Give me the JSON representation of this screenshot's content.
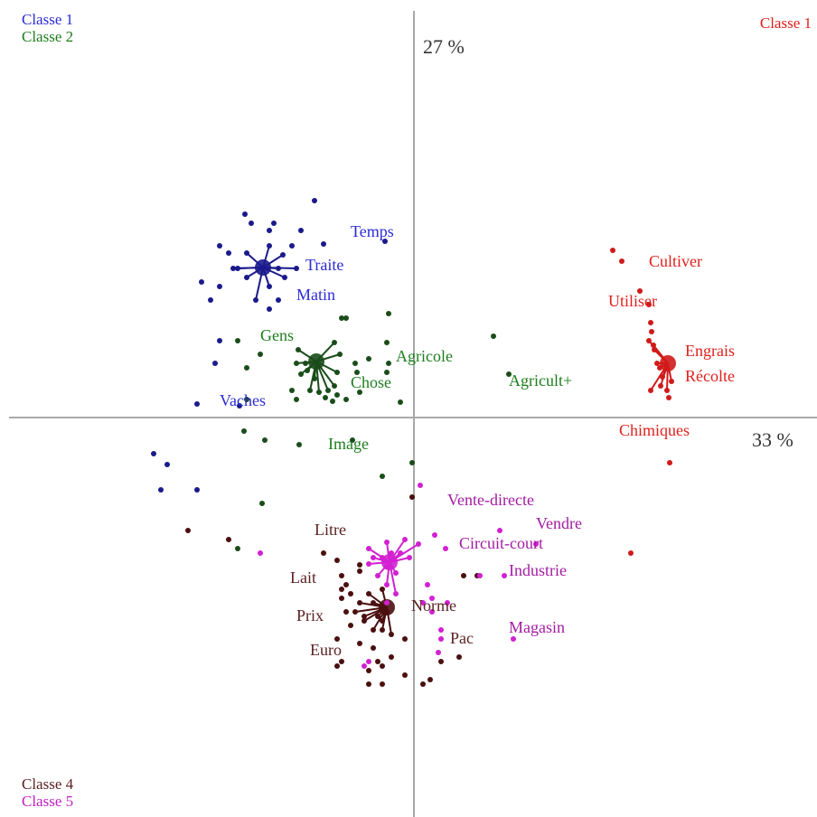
{
  "legend": {
    "top_left": [
      {
        "label": "Classe 1",
        "color": "#2b2bd6"
      },
      {
        "label": "Classe 2",
        "color": "#1e7d1e"
      }
    ],
    "top_right": {
      "label": "Classe 1",
      "color": "#e0201c"
    },
    "bottom_left": [
      {
        "label": "Classe 4",
        "color": "#5a1f1f"
      },
      {
        "label": "Classe 5",
        "color": "#c020c0"
      }
    ]
  },
  "chart_data": {
    "type": "scatter",
    "title": "",
    "xlabel": "33 %",
    "ylabel": "27 %",
    "xlim": [
      -4.48,
      4.45
    ],
    "ylim": [
      -4.4,
      4.6
    ],
    "grid": false,
    "legend_placement": "corners",
    "axis_color": "#a9a9a9",
    "class_colors": {
      "classe1_blue": "#2b2bd6",
      "classe1_red": "#e0201c",
      "classe2": "#1e7d1e",
      "classe4": "#5a1f1f",
      "classe5": "#c020c0"
    },
    "series": [
      {
        "name": "Classe 1",
        "color": "#1a1a8c",
        "points": [
          [
            -1.1,
            2.4
          ],
          [
            -1.87,
            2.25
          ],
          [
            -1.8,
            2.15
          ],
          [
            -1.55,
            2.15
          ],
          [
            -1.25,
            2.07
          ],
          [
            -1.6,
            2.07
          ],
          [
            -2.15,
            1.9
          ],
          [
            -1.6,
            1.9
          ],
          [
            -1.35,
            1.9
          ],
          [
            -1.45,
            1.8
          ],
          [
            -1.0,
            1.92
          ],
          [
            -0.32,
            1.95
          ],
          [
            -2.05,
            1.82
          ],
          [
            -1.85,
            1.82
          ],
          [
            -1.3,
            1.65
          ],
          [
            -1.5,
            1.65
          ],
          [
            -2.0,
            1.65
          ],
          [
            -1.85,
            1.55
          ],
          [
            -1.95,
            1.65
          ],
          [
            -2.35,
            1.5
          ],
          [
            -1.43,
            1.55
          ],
          [
            -2.15,
            1.45
          ],
          [
            -1.6,
            1.45
          ],
          [
            -1.75,
            1.3
          ],
          [
            -1.5,
            1.3
          ],
          [
            -1.6,
            1.2
          ],
          [
            -2.25,
            1.3
          ],
          [
            -2.15,
            0.85
          ],
          [
            -2.2,
            0.6
          ],
          [
            -2.4,
            0.15
          ],
          [
            -1.93,
            0.13
          ],
          [
            -2.88,
            -0.4
          ],
          [
            -2.73,
            -0.52
          ],
          [
            -2.8,
            -0.8
          ],
          [
            -2.4,
            -0.8
          ]
        ],
        "center": [
          -1.67,
          1.66
        ]
      },
      {
        "name": "Classe 1",
        "color": "#d01a1a",
        "points": [
          [
            2.2,
            1.85
          ],
          [
            2.3,
            1.73
          ],
          [
            2.5,
            1.4
          ],
          [
            2.6,
            1.25
          ],
          [
            2.62,
            1.05
          ],
          [
            2.63,
            0.95
          ],
          [
            2.6,
            0.85
          ],
          [
            2.65,
            0.8
          ],
          [
            2.66,
            0.75
          ],
          [
            2.69,
            0.6
          ],
          [
            2.72,
            0.55
          ],
          [
            2.75,
            0.45
          ],
          [
            2.62,
            0.3
          ],
          [
            2.73,
            0.35
          ],
          [
            2.8,
            0.55
          ],
          [
            2.85,
            0.4
          ],
          [
            2.8,
            0.3
          ],
          [
            2.82,
            0.22
          ],
          [
            2.4,
            -1.5
          ],
          [
            2.83,
            -0.5
          ]
        ],
        "center": [
          2.81,
          0.6
        ]
      },
      {
        "name": "Classe 2",
        "color": "#1a4d1a",
        "points": [
          [
            -0.8,
            1.1
          ],
          [
            -0.75,
            1.1
          ],
          [
            -0.28,
            1.15
          ],
          [
            -1.95,
            0.85
          ],
          [
            -0.88,
            0.83
          ],
          [
            -0.3,
            0.83
          ],
          [
            -1.7,
            0.7
          ],
          [
            -1.28,
            0.75
          ],
          [
            -0.82,
            0.7
          ],
          [
            -0.5,
            0.65
          ],
          [
            -1.3,
            0.6
          ],
          [
            -1.2,
            0.6
          ],
          [
            -0.65,
            0.6
          ],
          [
            -0.28,
            0.6
          ],
          [
            0.88,
            0.9
          ],
          [
            -1.85,
            0.55
          ],
          [
            -1.18,
            0.52
          ],
          [
            -0.85,
            0.5
          ],
          [
            -1.25,
            0.48
          ],
          [
            -1.1,
            0.43
          ],
          [
            -0.63,
            0.5
          ],
          [
            -0.3,
            0.5
          ],
          [
            1.05,
            0.48
          ],
          [
            -1.85,
            0.2
          ],
          [
            -1.15,
            0.3
          ],
          [
            -1.05,
            0.28
          ],
          [
            -0.85,
            0.25
          ],
          [
            -1.35,
            0.3
          ],
          [
            -0.95,
            0.3
          ],
          [
            -0.9,
            0.18
          ],
          [
            -0.75,
            0.2
          ],
          [
            -0.6,
            0.28
          ],
          [
            -1.3,
            0.2
          ],
          [
            -0.15,
            0.17
          ],
          [
            -0.98,
            0.22
          ],
          [
            -0.88,
            0.35
          ],
          [
            -1.88,
            -0.15
          ],
          [
            -1.65,
            -0.25
          ],
          [
            -1.27,
            -0.3
          ],
          [
            -0.68,
            -0.25
          ],
          [
            -0.35,
            -0.65
          ],
          [
            -0.02,
            -0.5
          ],
          [
            -1.68,
            -0.95
          ],
          [
            -1.95,
            -1.45
          ]
        ],
        "center": [
          -1.08,
          0.62
        ]
      },
      {
        "name": "Classe 4",
        "color": "#4a0f0f",
        "points": [
          [
            -0.02,
            -0.88
          ],
          [
            -2.5,
            -1.25
          ],
          [
            -2.05,
            -1.35
          ],
          [
            -1.0,
            -1.5
          ],
          [
            -0.85,
            -1.58
          ],
          [
            -0.6,
            -1.63
          ],
          [
            -0.8,
            -1.75
          ],
          [
            -0.6,
            -1.7
          ],
          [
            -0.75,
            -1.85
          ],
          [
            -0.8,
            -1.9
          ],
          [
            -0.7,
            -1.95
          ],
          [
            -0.5,
            -1.95
          ],
          [
            -0.35,
            -1.9
          ],
          [
            -0.8,
            -2.0
          ],
          [
            -0.6,
            -2.05
          ],
          [
            -0.45,
            -2.05
          ],
          [
            -0.75,
            -2.15
          ],
          [
            -0.65,
            -2.15
          ],
          [
            -0.55,
            -2.2
          ],
          [
            -0.4,
            -2.2
          ],
          [
            -0.3,
            -2.15
          ],
          [
            -0.35,
            -2.25
          ],
          [
            -0.55,
            -2.25
          ],
          [
            -0.45,
            -2.35
          ],
          [
            -0.7,
            -2.3
          ],
          [
            -0.85,
            -2.45
          ],
          [
            -0.25,
            -2.4
          ],
          [
            -0.35,
            -2.35
          ],
          [
            -0.1,
            -2.45
          ],
          [
            -0.45,
            -2.55
          ],
          [
            -0.8,
            -2.7
          ],
          [
            -0.6,
            -2.5
          ],
          [
            -0.4,
            -2.7
          ],
          [
            -0.25,
            -2.65
          ],
          [
            -0.85,
            -2.75
          ],
          [
            -0.5,
            -2.8
          ],
          [
            -0.35,
            -2.75
          ],
          [
            -0.1,
            -2.85
          ],
          [
            -0.5,
            -2.95
          ],
          [
            0.18,
            -2.9
          ],
          [
            0.1,
            -2.95
          ],
          [
            0.3,
            -2.7
          ],
          [
            0.5,
            -2.65
          ],
          [
            0.55,
            -1.75
          ],
          [
            0.7,
            -1.75
          ],
          [
            -0.35,
            -2.95
          ]
        ],
        "center": [
          -0.3,
          -2.1
        ]
      },
      {
        "name": "Classe 5",
        "color": "#d220d2",
        "points": [
          [
            0.07,
            -0.75
          ],
          [
            -0.1,
            -1.35
          ],
          [
            0.23,
            -1.3
          ],
          [
            -0.3,
            -1.38
          ],
          [
            0.05,
            -1.4
          ],
          [
            0.35,
            -1.45
          ],
          [
            -0.5,
            -1.45
          ],
          [
            -0.45,
            -1.55
          ],
          [
            -0.35,
            -1.55
          ],
          [
            -0.25,
            -1.5
          ],
          [
            -0.15,
            -1.5
          ],
          [
            -0.05,
            -1.55
          ],
          [
            -0.5,
            -1.62
          ],
          [
            -0.3,
            -1.65
          ],
          [
            -0.4,
            -1.75
          ],
          [
            -0.2,
            -1.72
          ],
          [
            -0.3,
            -1.85
          ],
          [
            -0.2,
            -1.95
          ],
          [
            -0.3,
            -2.05
          ],
          [
            0.15,
            -1.85
          ],
          [
            0.2,
            -2.0
          ],
          [
            0.37,
            -2.05
          ],
          [
            0.1,
            -2.05
          ],
          [
            0.95,
            -1.25
          ],
          [
            1.35,
            -1.4
          ],
          [
            0.73,
            -1.75
          ],
          [
            1.0,
            -1.75
          ],
          [
            -1.7,
            -1.5
          ],
          [
            0.2,
            -2.15
          ],
          [
            0.3,
            -2.35
          ],
          [
            0.3,
            -2.45
          ],
          [
            1.1,
            -2.45
          ],
          [
            0.27,
            -2.6
          ],
          [
            -0.5,
            -2.7
          ],
          [
            -0.55,
            -2.75
          ]
        ],
        "center": [
          -0.27,
          -1.6
        ]
      }
    ],
    "labels": [
      {
        "text": "Temps",
        "x": -0.7,
        "y": 2.0,
        "color": "#2b2bd6"
      },
      {
        "text": "Traite",
        "x": -1.2,
        "y": 1.63,
        "color": "#2b2bd6"
      },
      {
        "text": "Matin",
        "x": -1.3,
        "y": 1.3,
        "color": "#2b2bd6"
      },
      {
        "text": "Vaches",
        "x": -2.15,
        "y": 0.13,
        "color": "#2b2bd6"
      },
      {
        "text": "Cultiver",
        "x": 2.6,
        "y": 1.67,
        "color": "#e0201c"
      },
      {
        "text": "Utiliser",
        "x": 2.15,
        "y": 1.23,
        "color": "#e0201c"
      },
      {
        "text": "Engrais",
        "x": 3.0,
        "y": 0.68,
        "color": "#e0201c"
      },
      {
        "text": "Récolte",
        "x": 3.0,
        "y": 0.4,
        "color": "#e0201c"
      },
      {
        "text": "Chimiques",
        "x": 2.27,
        "y": -0.2,
        "color": "#e0201c"
      },
      {
        "text": "Gens",
        "x": -1.7,
        "y": 0.85,
        "color": "#1e7d1e"
      },
      {
        "text": "Agricole",
        "x": -0.2,
        "y": 0.62,
        "color": "#1e7d1e"
      },
      {
        "text": "Chose",
        "x": -0.7,
        "y": 0.33,
        "color": "#1e7d1e"
      },
      {
        "text": "Agricult+",
        "x": 1.05,
        "y": 0.35,
        "color": "#1e7d1e"
      },
      {
        "text": "Image",
        "x": -0.95,
        "y": -0.35,
        "color": "#1e7d1e"
      },
      {
        "text": "Vente-directe",
        "x": 0.37,
        "y": -0.97,
        "color": "#a21ca2"
      },
      {
        "text": "Vendre",
        "x": 1.35,
        "y": -1.23,
        "color": "#a21ca2"
      },
      {
        "text": "Circuit-court",
        "x": 0.5,
        "y": -1.45,
        "color": "#a21ca2"
      },
      {
        "text": "Industrie",
        "x": 1.05,
        "y": -1.75,
        "color": "#a21ca2"
      },
      {
        "text": "Magasin",
        "x": 1.05,
        "y": -2.38,
        "color": "#a21ca2"
      },
      {
        "text": "Litre",
        "x": -1.1,
        "y": -1.3,
        "color": "#5a1f1f"
      },
      {
        "text": "Lait",
        "x": -1.37,
        "y": -1.83,
        "color": "#5a1f1f"
      },
      {
        "text": "Prix",
        "x": -1.3,
        "y": -2.25,
        "color": "#5a1f1f"
      },
      {
        "text": "Euro",
        "x": -1.15,
        "y": -2.63,
        "color": "#5a1f1f"
      },
      {
        "text": "Norme",
        "x": -0.03,
        "y": -2.14,
        "color": "#5a1f1f"
      },
      {
        "text": "Pac",
        "x": 0.4,
        "y": -2.5,
        "color": "#5a1f1f"
      }
    ]
  }
}
